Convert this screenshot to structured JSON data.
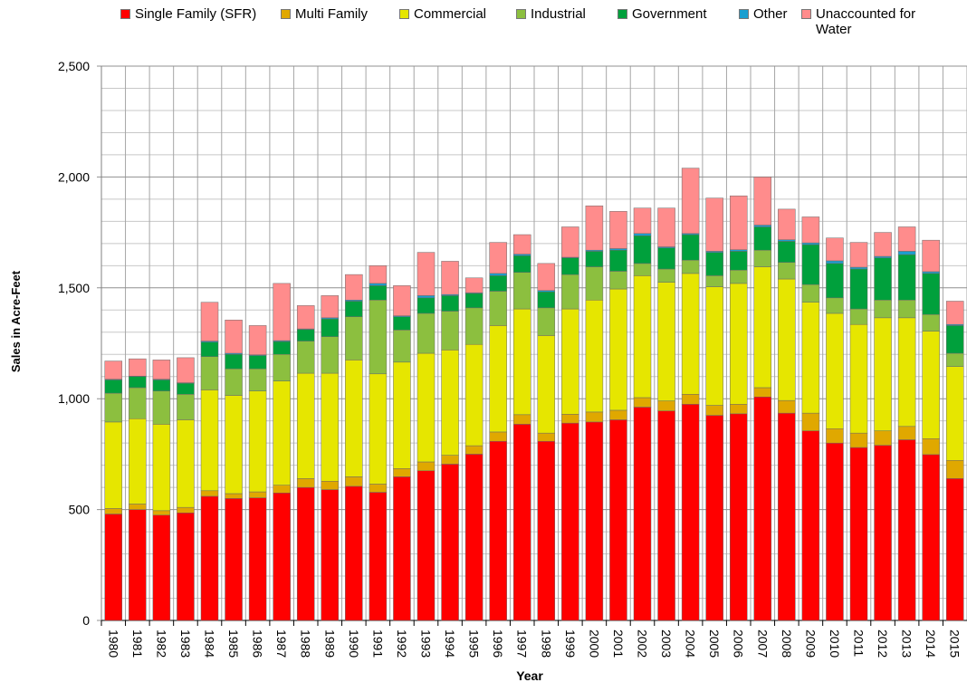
{
  "chart_data": {
    "type": "stacked_bar",
    "x_label": "Year",
    "y_label": "Sales in Acre-Feet",
    "categories": [
      "1980",
      "1981",
      "1982",
      "1983",
      "1984",
      "1985",
      "1986",
      "1987",
      "1988",
      "1989",
      "1990",
      "1991",
      "1992",
      "1993",
      "1994",
      "1995",
      "1996",
      "1997",
      "1998",
      "1999",
      "2000",
      "2001",
      "2002",
      "2003",
      "2004",
      "2005",
      "2006",
      "2007",
      "2008",
      "2009",
      "2010",
      "2011",
      "2012",
      "2013",
      "2014",
      "2015"
    ],
    "series": [
      {
        "name": "Single Family (SFR)",
        "color": "#ff0000",
        "values": [
          480,
          500,
          475,
          485,
          560,
          550,
          553,
          575,
          600,
          590,
          605,
          578,
          648,
          675,
          705,
          750,
          808,
          885,
          808,
          890,
          895,
          905,
          962,
          945,
          975,
          925,
          932,
          1008,
          935,
          855,
          800,
          780,
          790,
          815,
          748,
          640
        ]
      },
      {
        "name": "Multi Family",
        "color": "#e0a800",
        "values": [
          25,
          25,
          20,
          25,
          25,
          22,
          27,
          35,
          40,
          38,
          43,
          37,
          37,
          40,
          40,
          38,
          42,
          43,
          37,
          40,
          45,
          43,
          43,
          45,
          45,
          45,
          43,
          42,
          57,
          80,
          65,
          65,
          65,
          60,
          72,
          82
        ]
      },
      {
        "name": "Commercial",
        "color": "#e6e600",
        "values": [
          390,
          385,
          390,
          395,
          455,
          443,
          455,
          470,
          475,
          487,
          527,
          497,
          480,
          490,
          475,
          457,
          480,
          477,
          440,
          475,
          505,
          547,
          550,
          535,
          545,
          535,
          545,
          545,
          548,
          500,
          520,
          490,
          510,
          490,
          485,
          423
        ]
      },
      {
        "name": "Industrial",
        "color": "#8cbf3f",
        "values": [
          130,
          140,
          150,
          115,
          150,
          120,
          100,
          120,
          145,
          165,
          195,
          333,
          145,
          180,
          175,
          165,
          155,
          165,
          125,
          155,
          150,
          80,
          55,
          60,
          60,
          50,
          60,
          75,
          75,
          80,
          70,
          70,
          80,
          80,
          75,
          60
        ]
      },
      {
        "name": "Government",
        "color": "#00a03c",
        "values": [
          60,
          50,
          50,
          50,
          65,
          65,
          60,
          58,
          52,
          80,
          70,
          65,
          60,
          70,
          70,
          65,
          70,
          75,
          72,
          75,
          70,
          95,
          125,
          95,
          115,
          105,
          85,
          105,
          95,
          180,
          155,
          180,
          190,
          205,
          185,
          125
        ]
      },
      {
        "name": "Other",
        "color": "#1a9fd0",
        "values": [
          3,
          2,
          3,
          2,
          5,
          5,
          3,
          4,
          3,
          5,
          5,
          10,
          4,
          10,
          5,
          3,
          10,
          7,
          6,
          3,
          5,
          7,
          10,
          5,
          5,
          5,
          7,
          8,
          7,
          8,
          12,
          8,
          7,
          15,
          8,
          5
        ]
      },
      {
        "name": "Unaccounted for Water",
        "color": "#ff8c8c",
        "values": [
          82,
          78,
          87,
          113,
          175,
          150,
          132,
          258,
          105,
          100,
          115,
          80,
          136,
          195,
          150,
          67,
          140,
          88,
          122,
          137,
          200,
          168,
          115,
          175,
          295,
          240,
          243,
          217,
          138,
          117,
          103,
          112,
          108,
          110,
          142,
          105
        ]
      }
    ],
    "ylim": [
      0,
      2500
    ],
    "yticks": [
      0,
      500,
      {
        "value": 1000,
        "label": "1,000"
      },
      {
        "value": 1500,
        "label": "1,500"
      },
      {
        "value": 2000,
        "label": "2,000"
      },
      {
        "value": 2500,
        "label": "2,500"
      }
    ],
    "minor_yticks": [
      100,
      200,
      300,
      400,
      600,
      700,
      800,
      900,
      1100,
      1200,
      1300,
      1400,
      1600,
      1700,
      1800,
      1900,
      2100,
      2200,
      2300,
      2400
    ],
    "grid": true
  }
}
